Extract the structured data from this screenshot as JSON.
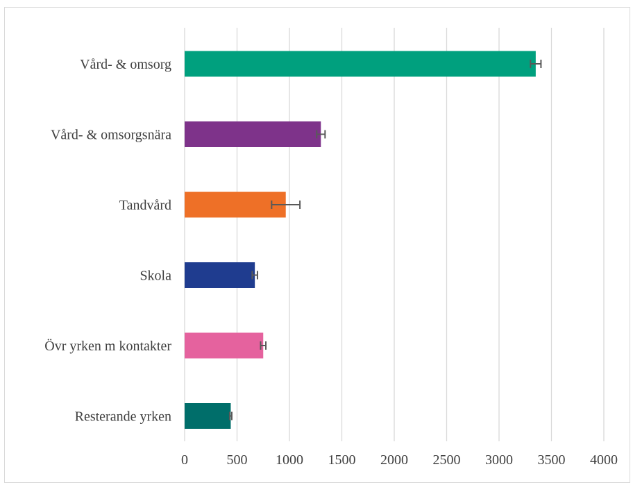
{
  "chart_data": {
    "type": "bar",
    "orientation": "horizontal",
    "title": "",
    "xlabel": "",
    "ylabel": "",
    "xlim": [
      0,
      4000
    ],
    "x_ticks": [
      0,
      500,
      1000,
      1500,
      2000,
      2500,
      3000,
      3500,
      4000
    ],
    "x_tick_labels": [
      "0",
      "500",
      "1000",
      "1500",
      "2000",
      "2500",
      "3000",
      "3500",
      "4000"
    ],
    "grid": "vertical",
    "legend": "none",
    "categories": [
      "Vård- & omsorg",
      "Vård- & omsorgsnära",
      "Tandvård",
      "Skola",
      "Övr yrken m kontakter",
      "Resterande yrken"
    ],
    "values": [
      3350,
      1300,
      965,
      670,
      750,
      440
    ],
    "error_low": [
      3300,
      1260,
      830,
      645,
      725,
      430
    ],
    "error_high": [
      3400,
      1340,
      1100,
      695,
      775,
      450
    ],
    "colors": [
      "#00A07E",
      "#7E338A",
      "#EE7027",
      "#1F3C8F",
      "#E5629E",
      "#006E6A"
    ],
    "error_bar_color": "#595959",
    "grid_color": "#d9d9d9"
  }
}
